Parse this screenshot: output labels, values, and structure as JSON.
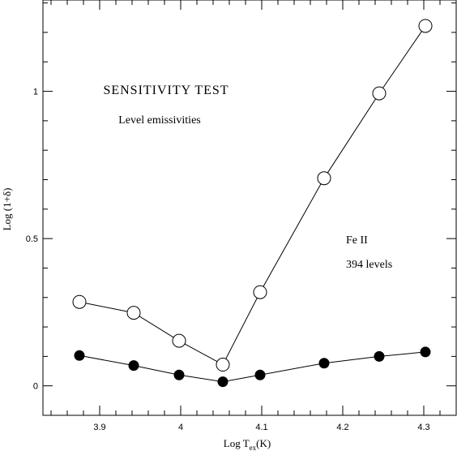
{
  "chart_data": {
    "type": "line",
    "title": "SENSITIVITY TEST",
    "subtitle": "Level emissivities",
    "xlabel": "Log T_ex(K)",
    "xlabel_main": "Log T",
    "xlabel_sub": "ex",
    "xlabel_suffix": "(K)",
    "ylabel": "Log (1+δ)",
    "xlim": [
      3.83,
      4.34
    ],
    "ylim": [
      -0.1,
      1.31
    ],
    "xticks": [
      3.9,
      4,
      4.1,
      4.2,
      4.3
    ],
    "xtick_labels": [
      "3.9",
      "4",
      "4.1",
      "4.2",
      "4.3"
    ],
    "xminor_step": 0.02,
    "yticks": [
      0,
      0.5,
      1
    ],
    "ytick_labels": [
      "0",
      "0.5",
      "1"
    ],
    "yminor_step": 0.1,
    "grid": false,
    "annotations": [
      "Fe II",
      "394 levels"
    ],
    "series": [
      {
        "marker": "open-circle",
        "x": [
          3.875,
          3.942,
          3.998,
          4.052,
          4.098,
          4.177,
          4.245,
          4.302
        ],
        "y": [
          0.285,
          0.248,
          0.153,
          0.072,
          0.318,
          0.705,
          0.993,
          1.222
        ]
      },
      {
        "marker": "filled-circle",
        "x": [
          3.875,
          3.942,
          3.998,
          4.052,
          4.098,
          4.177,
          4.245,
          4.302
        ],
        "y": [
          0.103,
          0.069,
          0.037,
          0.014,
          0.037,
          0.077,
          0.1,
          0.115
        ]
      }
    ]
  }
}
